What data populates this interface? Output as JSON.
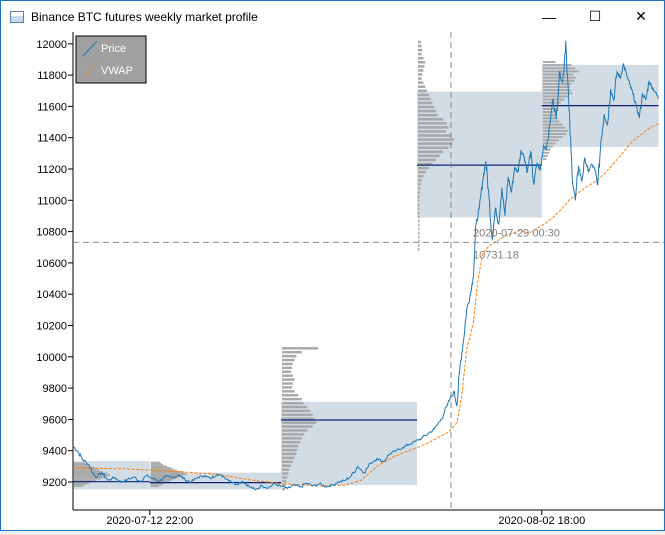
{
  "window": {
    "title": "Binance BTC futures weekly market profile",
    "minimize_glyph": "—",
    "maximize_glyph": "☐",
    "close_glyph": "✕"
  },
  "chart_data": {
    "type": "line",
    "ylim": [
      9080,
      12060
    ],
    "y_ticks": [
      9200,
      9400,
      9600,
      9800,
      10000,
      10200,
      10400,
      10600,
      10800,
      11000,
      11200,
      11400,
      11600,
      11800,
      12000
    ],
    "x_tick_labels": [
      "2020-07-12 22:00",
      "2020-08-02 18:00"
    ],
    "legend_placement": "top-left",
    "legend": [
      {
        "name": "Price",
        "color": "#1f77b4"
      },
      {
        "name": "VWAP",
        "color": "#ff7f0e"
      }
    ],
    "crosshair": {
      "time_label": "2020-07-29 00:30",
      "price_label": "10731.18",
      "price": 10731.18
    },
    "weeks": [
      {
        "value_area": [
          9152,
          9334
        ],
        "poc": 9202,
        "profile_top": 9325,
        "profile_bin": 9.2,
        "profile": [
          0.3,
          0.38,
          0.45,
          0.55,
          0.62,
          0.7,
          0.8,
          0.92,
          1.0,
          0.96,
          0.88,
          0.75,
          0.62,
          0.5,
          0.42,
          0.34,
          0.25
        ]
      },
      {
        "value_area": [
          9152,
          9260
        ],
        "poc": 9196,
        "profile_top": 9330,
        "profile_bin": 8.5,
        "profile": [
          0.25,
          0.3,
          0.35,
          0.45,
          0.55,
          0.62,
          0.72,
          0.85,
          0.95,
          1.0,
          0.9,
          0.82,
          0.72,
          0.62,
          0.54,
          0.45,
          0.38,
          0.3,
          0.22
        ]
      },
      {
        "value_area": [
          9180,
          9712
        ],
        "poc": 9596,
        "profile_top": 10062,
        "profile_bin": 25,
        "profile": [
          1.0,
          0.55,
          0.4,
          0.35,
          0.3,
          0.28,
          0.25,
          0.3,
          0.35,
          0.3,
          0.28,
          0.35,
          0.45,
          0.55,
          0.6,
          0.7,
          0.78,
          0.85,
          0.9,
          0.95,
          0.85,
          0.7,
          0.62,
          0.55,
          0.5,
          0.45,
          0.42,
          0.4,
          0.35,
          0.3,
          0.25,
          0.2,
          0.18,
          0.15,
          0.12,
          0.1,
          0.08
        ]
      },
      {
        "value_area": [
          10890,
          11695
        ],
        "poc": 11225,
        "profile_top": 12020,
        "profile_bin": 26,
        "profile": [
          0.08,
          0.1,
          0.12,
          0.1,
          0.15,
          0.2,
          0.18,
          0.15,
          0.12,
          0.1,
          0.15,
          0.2,
          0.25,
          0.3,
          0.35,
          0.4,
          0.45,
          0.5,
          0.55,
          0.7,
          0.8,
          0.85,
          0.78,
          0.92,
          1.0,
          0.95,
          0.85,
          0.7,
          0.6,
          0.5,
          0.4,
          0.3,
          0.22,
          0.15,
          0.1,
          0.08,
          0.06,
          0.05,
          0.05,
          0.04,
          0.04,
          0.04,
          0.04,
          0.04,
          0.04,
          0.04,
          0.04,
          0.04,
          0.04,
          0.04,
          0.04,
          0.04
        ]
      },
      {
        "value_area": [
          11340,
          11865
        ],
        "poc": 11605,
        "profile_top": 11890,
        "profile_bin": 20,
        "profile": [
          0.35,
          0.8,
          0.9,
          1.0,
          0.85,
          0.92,
          0.88,
          0.8,
          0.75,
          0.78,
          0.82,
          0.7,
          0.6,
          0.5,
          0.42,
          0.35,
          0.3,
          0.35,
          0.4,
          0.45,
          0.55,
          0.62,
          0.7,
          0.65,
          0.55,
          0.45,
          0.35,
          0.28,
          0.22,
          0.18,
          0.14,
          0.1
        ]
      }
    ],
    "price_series": [
      [
        0,
        9430
      ],
      [
        0.3,
        9395
      ],
      [
        0.6,
        9345
      ],
      [
        1.0,
        9310
      ],
      [
        1.4,
        9230
      ],
      [
        1.8,
        9258
      ],
      [
        2.2,
        9210
      ],
      [
        2.6,
        9230
      ],
      [
        3.0,
        9198
      ],
      [
        3.4,
        9215
      ],
      [
        3.8,
        9232
      ],
      [
        4.2,
        9205
      ],
      [
        4.6,
        9240
      ],
      [
        5.0,
        9222
      ],
      [
        5.4,
        9205
      ],
      [
        5.8,
        9235
      ],
      [
        6.2,
        9228
      ],
      [
        6.6,
        9245
      ],
      [
        7.0,
        9215
      ],
      [
        7.4,
        9200
      ],
      [
        7.8,
        9230
      ],
      [
        8.2,
        9240
      ],
      [
        8.6,
        9222
      ],
      [
        9.0,
        9250
      ],
      [
        9.4,
        9235
      ],
      [
        9.8,
        9210
      ],
      [
        10.2,
        9185
      ],
      [
        10.6,
        9205
      ],
      [
        11.0,
        9172
      ],
      [
        11.4,
        9150
      ],
      [
        11.8,
        9178
      ],
      [
        12.2,
        9162
      ],
      [
        12.6,
        9190
      ],
      [
        13.0,
        9172
      ],
      [
        13.4,
        9158
      ],
      [
        13.8,
        9180
      ],
      [
        14.2,
        9168
      ],
      [
        14.6,
        9192
      ],
      [
        15.0,
        9175
      ],
      [
        15.4,
        9188
      ],
      [
        15.8,
        9170
      ],
      [
        16.2,
        9180
      ],
      [
        16.6,
        9200
      ],
      [
        17.0,
        9210
      ],
      [
        17.4,
        9240
      ],
      [
        17.8,
        9300
      ],
      [
        18.2,
        9260
      ],
      [
        18.6,
        9320
      ],
      [
        19.0,
        9350
      ],
      [
        19.4,
        9330
      ],
      [
        19.8,
        9380
      ],
      [
        20.2,
        9400
      ],
      [
        20.6,
        9420
      ],
      [
        21.0,
        9440
      ],
      [
        21.4,
        9460
      ],
      [
        21.8,
        9480
      ],
      [
        22.2,
        9510
      ],
      [
        22.6,
        9540
      ],
      [
        23.0,
        9600
      ],
      [
        23.4,
        9690
      ],
      [
        23.8,
        9780
      ],
      [
        24.0,
        9690
      ],
      [
        24.2,
        9950
      ],
      [
        24.4,
        10100
      ],
      [
        24.6,
        10300
      ],
      [
        24.8,
        10380
      ],
      [
        25.0,
        10500
      ],
      [
        25.2,
        10850
      ],
      [
        25.4,
        10950
      ],
      [
        25.6,
        11120
      ],
      [
        25.8,
        11250
      ],
      [
        26.0,
        11020
      ],
      [
        26.2,
        10750
      ],
      [
        26.4,
        10950
      ],
      [
        26.6,
        10850
      ],
      [
        26.8,
        11080
      ],
      [
        27.0,
        10900
      ],
      [
        27.2,
        11150
      ],
      [
        27.4,
        11050
      ],
      [
        27.6,
        11210
      ],
      [
        27.8,
        11180
      ],
      [
        28.0,
        11320
      ],
      [
        28.2,
        11280
      ],
      [
        28.4,
        11180
      ],
      [
        28.6,
        11310
      ],
      [
        28.8,
        11100
      ],
      [
        29.0,
        11240
      ],
      [
        29.2,
        11190
      ],
      [
        29.4,
        11350
      ],
      [
        29.6,
        11330
      ],
      [
        29.8,
        11480
      ],
      [
        30.0,
        11650
      ],
      [
        30.2,
        11520
      ],
      [
        30.4,
        11820
      ],
      [
        30.6,
        11750
      ],
      [
        30.8,
        12020
      ],
      [
        31.0,
        11580
      ],
      [
        31.2,
        11150
      ],
      [
        31.4,
        11000
      ],
      [
        31.6,
        11220
      ],
      [
        31.8,
        11120
      ],
      [
        32.0,
        11270
      ],
      [
        32.2,
        11180
      ],
      [
        32.4,
        11230
      ],
      [
        32.6,
        11200
      ],
      [
        32.8,
        11100
      ],
      [
        33.0,
        11380
      ],
      [
        33.2,
        11550
      ],
      [
        33.4,
        11480
      ],
      [
        33.6,
        11710
      ],
      [
        33.8,
        11640
      ],
      [
        34.0,
        11820
      ],
      [
        34.2,
        11780
      ],
      [
        34.4,
        11870
      ],
      [
        34.6,
        11800
      ],
      [
        34.8,
        11740
      ],
      [
        35.0,
        11680
      ],
      [
        35.2,
        11600
      ],
      [
        35.4,
        11530
      ],
      [
        35.6,
        11680
      ],
      [
        35.8,
        11640
      ],
      [
        36.0,
        11760
      ],
      [
        36.2,
        11720
      ],
      [
        36.4,
        11690
      ],
      [
        36.6,
        11650
      ]
    ],
    "vwap_series": [
      [
        0,
        9290
      ],
      [
        3,
        9285
      ],
      [
        6,
        9270
      ],
      [
        9,
        9250
      ],
      [
        11,
        9215
      ],
      [
        13,
        9190
      ],
      [
        15.5,
        9175
      ],
      [
        17,
        9180
      ],
      [
        18,
        9210
      ],
      [
        19,
        9300
      ],
      [
        20,
        9360
      ],
      [
        21,
        9400
      ],
      [
        22,
        9440
      ],
      [
        23.5,
        9520
      ],
      [
        24.0,
        9580
      ],
      [
        24.3,
        9750
      ],
      [
        24.6,
        10050
      ],
      [
        25.0,
        10200
      ],
      [
        25.3,
        10480
      ],
      [
        25.6,
        10660
      ],
      [
        26.0,
        10710
      ],
      [
        26.5,
        10740
      ],
      [
        27.0,
        10770
      ],
      [
        28.0,
        10810
      ],
      [
        28.5,
        10790
      ],
      [
        29.0,
        10820
      ],
      [
        29.5,
        10850
      ],
      [
        30.0,
        10890
      ],
      [
        30.5,
        10940
      ],
      [
        31.0,
        11000
      ],
      [
        31.5,
        11040
      ],
      [
        32.0,
        11080
      ],
      [
        32.5,
        11110
      ],
      [
        33.0,
        11150
      ],
      [
        33.5,
        11200
      ],
      [
        34.0,
        11260
      ],
      [
        34.5,
        11320
      ],
      [
        35.0,
        11380
      ],
      [
        35.5,
        11420
      ],
      [
        36.0,
        11460
      ],
      [
        36.6,
        11490
      ]
    ]
  }
}
